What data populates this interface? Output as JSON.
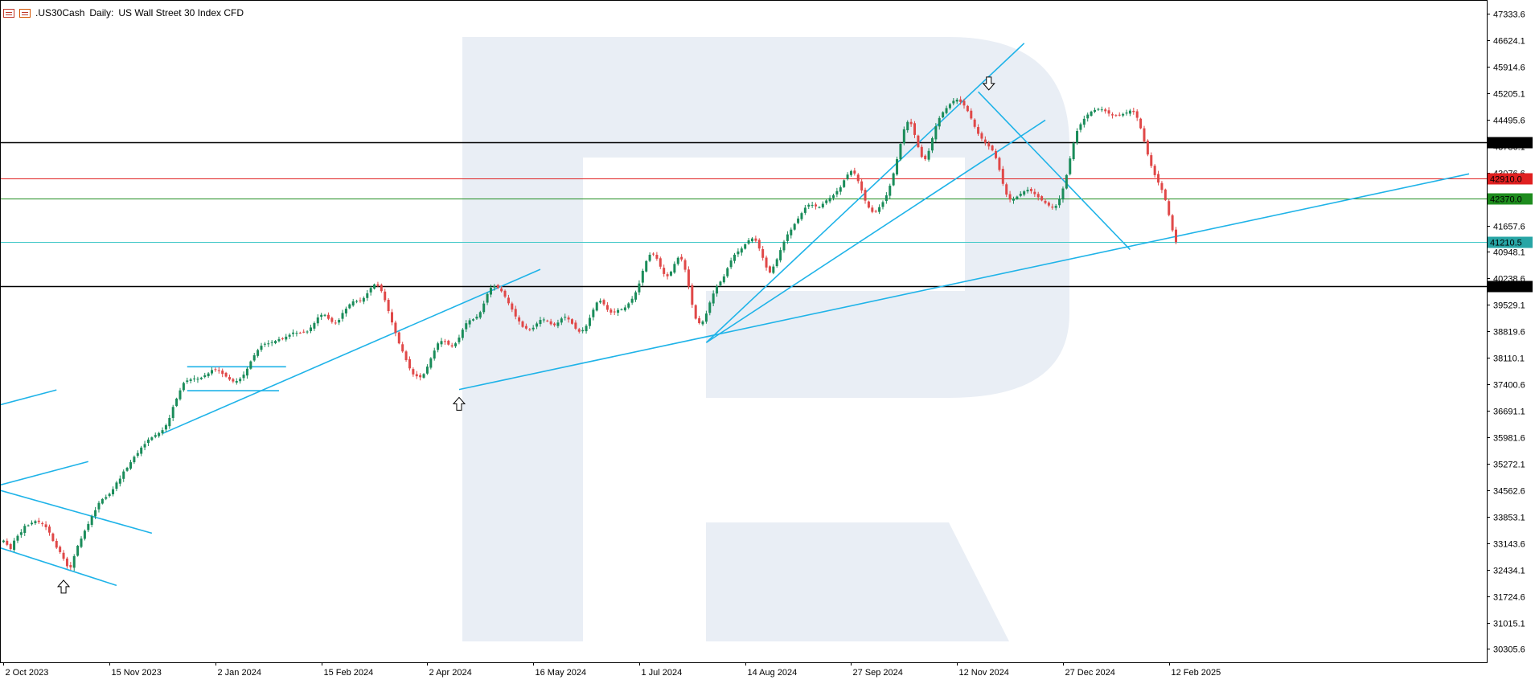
{
  "header": {
    "symbol": ".US30Cash",
    "timeframe": "Daily:",
    "description": "US Wall Street 30 Index CFD",
    "icons": [
      "calendar-icon",
      "bars-icon"
    ]
  },
  "chart_data": {
    "type": "candlestick",
    "title": ".US30Cash, Daily:  US Wall Street 30 Index CFD",
    "y_ticks": [
      47333.6,
      46624.1,
      45914.6,
      45205.1,
      44495.6,
      43786.1,
      43076.6,
      42367.1,
      41657.6,
      40948.1,
      40238.6,
      39529.1,
      38819.6,
      38110.1,
      37400.6,
      36691.1,
      35981.6,
      35272.1,
      34562.6,
      33853.1,
      33143.6,
      32434.1,
      31724.6,
      31015.1,
      30305.6
    ],
    "ylim": [
      29950,
      47700
    ],
    "x_ticks": [
      "2 Oct 2023",
      "15 Nov 2023",
      "2 Jan 2024",
      "15 Feb 2024",
      "2 Apr 2024",
      "16 May 2024",
      "1 Jul 2024",
      "14 Aug 2024",
      "27 Sep 2024",
      "12 Nov 2024",
      "27 Dec 2024",
      "12 Feb 2025"
    ],
    "x_unit": "trading-day index (each x_tick every 30 trading days)",
    "x_tick_positions": [
      0,
      30,
      60,
      90,
      120,
      150,
      180,
      210,
      240,
      270,
      300,
      330
    ],
    "xlim": [
      -1,
      420
    ],
    "grid": false,
    "levels": [
      {
        "label": "43890.0",
        "value": 43890.0,
        "color": "#000000",
        "badge_bg": "#000000",
        "badge_fg": "#ffffff"
      },
      {
        "label": "42910.0",
        "value": 42910.0,
        "color": "#e02020",
        "badge_bg": "#e02020",
        "badge_fg": "#ffffff"
      },
      {
        "label": "42370.0",
        "value": 42370.0,
        "color": "#1e8c1e",
        "badge_bg": "#1e8c1e",
        "badge_fg": "#ffffff"
      },
      {
        "label": "41210.5",
        "value": 41210.5,
        "color": "#40c8c8",
        "badge_bg": "#27a5a5",
        "badge_fg": "#ffffff"
      },
      {
        "label": "40035.0",
        "value": 40035.0,
        "color": "#000000",
        "badge_bg": "#000000",
        "badge_fg": "#ffffff"
      }
    ],
    "trendlines_color": "#1fb3e8",
    "trendlines": [
      [
        [
          -1,
          36850
        ],
        [
          15,
          37250
        ]
      ],
      [
        [
          -1,
          34700
        ],
        [
          24,
          35330
        ]
      ],
      [
        [
          -1,
          34560
        ],
        [
          42,
          33410
        ]
      ],
      [
        [
          -1,
          33020
        ],
        [
          32,
          32010
        ]
      ],
      [
        [
          45,
          36080
        ],
        [
          152,
          40480
        ]
      ],
      [
        [
          52,
          37870
        ],
        [
          80,
          37870
        ]
      ],
      [
        [
          52,
          37230
        ],
        [
          78,
          37230
        ]
      ],
      [
        [
          129,
          37260
        ],
        [
          415,
          43040
        ]
      ],
      [
        [
          199,
          38520
        ],
        [
          289,
          46540
        ]
      ],
      [
        [
          199,
          38520
        ],
        [
          295,
          44480
        ]
      ],
      [
        [
          276,
          45240
        ],
        [
          319,
          41010
        ]
      ]
    ],
    "arrows": [
      {
        "dir": "up",
        "x": 17,
        "y": 32150
      },
      {
        "dir": "up",
        "x": 129,
        "y": 37050
      },
      {
        "dir": "down",
        "x": 279,
        "y": 45290
      }
    ],
    "up_color": "#1a8c5a",
    "down_color": "#e04848",
    "watermark_color": "#e9eef5",
    "closes": [
      33212,
      33099,
      32988,
      33210,
      33339,
      33436,
      33606,
      33620,
      33689,
      33734,
      33710,
      33653,
      33569,
      33425,
      33203,
      33023,
      32903,
      32725,
      32525,
      32496,
      32794,
      33072,
      33265,
      33476,
      33657,
      33862,
      34026,
      34222,
      34326,
      34378,
      34464,
      34589,
      34768,
      34872,
      35064,
      35164,
      35312,
      35459,
      35557,
      35704,
      35800,
      35919,
      35978,
      36042,
      36094,
      36172,
      36303,
      36499,
      36794,
      37017,
      37238,
      37435,
      37503,
      37530,
      37555,
      37547,
      37578,
      37642,
      37692,
      37782,
      37797,
      37761,
      37678,
      37607,
      37528,
      37476,
      37490,
      37550,
      37660,
      37818,
      38015,
      38179,
      38319,
      38434,
      38486,
      38497,
      38531,
      38564,
      38612,
      38625,
      38677,
      38727,
      38787,
      38778,
      38779,
      38806,
      38814,
      38923,
      39041,
      39192,
      39261,
      39262,
      39156,
      39071,
      39050,
      39126,
      39312,
      39427,
      39543,
      39624,
      39633,
      39639,
      39713,
      39840,
      39983,
      40076,
      40036,
      39898,
      39653,
      39363,
      39059,
      38774,
      38498,
      38281,
      38049,
      37827,
      37666,
      37616,
      37590,
      37676,
      37875,
      38096,
      38305,
      38497,
      38560,
      38545,
      38464,
      38414,
      38498,
      38654,
      38865,
      39037,
      39116,
      39144,
      39213,
      39335,
      39565,
      39823,
      39989,
      40032,
      39981,
      39894,
      39751,
      39572,
      39403,
      39218,
      39086,
      38939,
      38894,
      38867,
      38916,
      39030,
      39125,
      39138,
      39094,
      39011,
      38986,
      39055,
      39164,
      39209,
      39139,
      39023,
      38891,
      38810,
      38853,
      38968,
      39181,
      39401,
      39593,
      39637,
      39543,
      39397,
      39323,
      39330,
      39392,
      39412,
      39461,
      39568,
      39693,
      39866,
      40102,
      40442,
      40703,
      40872,
      40883,
      40766,
      40553,
      40357,
      40296,
      40420,
      40627,
      40791,
      40746,
      40471,
      40023,
      39533,
      39160,
      39040,
      39085,
      39297,
      39592,
      39833,
      40025,
      40153,
      40291,
      40512,
      40719,
      40874,
      40961,
      41040,
      41154,
      41258,
      41309,
      41247,
      41040,
      40790,
      40531,
      40398,
      40556,
      40753,
      40998,
      41222,
      41418,
      41546,
      41699,
      41844,
      41988,
      42133,
      42212,
      42208,
      42170,
      42149,
      42238,
      42328,
      42395,
      42465,
      42579,
      42679,
      42868,
      43021,
      43115,
      43049,
      42845,
      42596,
      42323,
      42136,
      42021,
      42039,
      42148,
      42283,
      42465,
      42722,
      43054,
      43437,
      43844,
      44234,
      44431,
      44374,
      44083,
      43757,
      43496,
      43433,
      43655,
      43995,
      44317,
      44537,
      44693,
      44803,
      44907,
      44997,
      45029,
      44968,
      44873,
      44721,
      44525,
      44301,
      44113,
      43984,
      43872,
      43775,
      43670,
      43462,
      43144,
      42773,
      42484,
      42352,
      42374,
      42431,
      42508,
      42571,
      42613,
      42577,
      42497,
      42412,
      42329,
      42258,
      42192,
      42135,
      42183,
      42378,
      42648,
      43009,
      43452,
      43867,
      44189,
      44370,
      44515,
      44629,
      44709,
      44753,
      44778,
      44767,
      44719,
      44655,
      44608,
      44595,
      44616,
      44645,
      44684,
      44735,
      44699,
      44543,
      44262,
      43909,
      43559,
      43252,
      43006,
      42807,
      42609,
      42339,
      41936,
      41528,
      41210
    ]
  }
}
